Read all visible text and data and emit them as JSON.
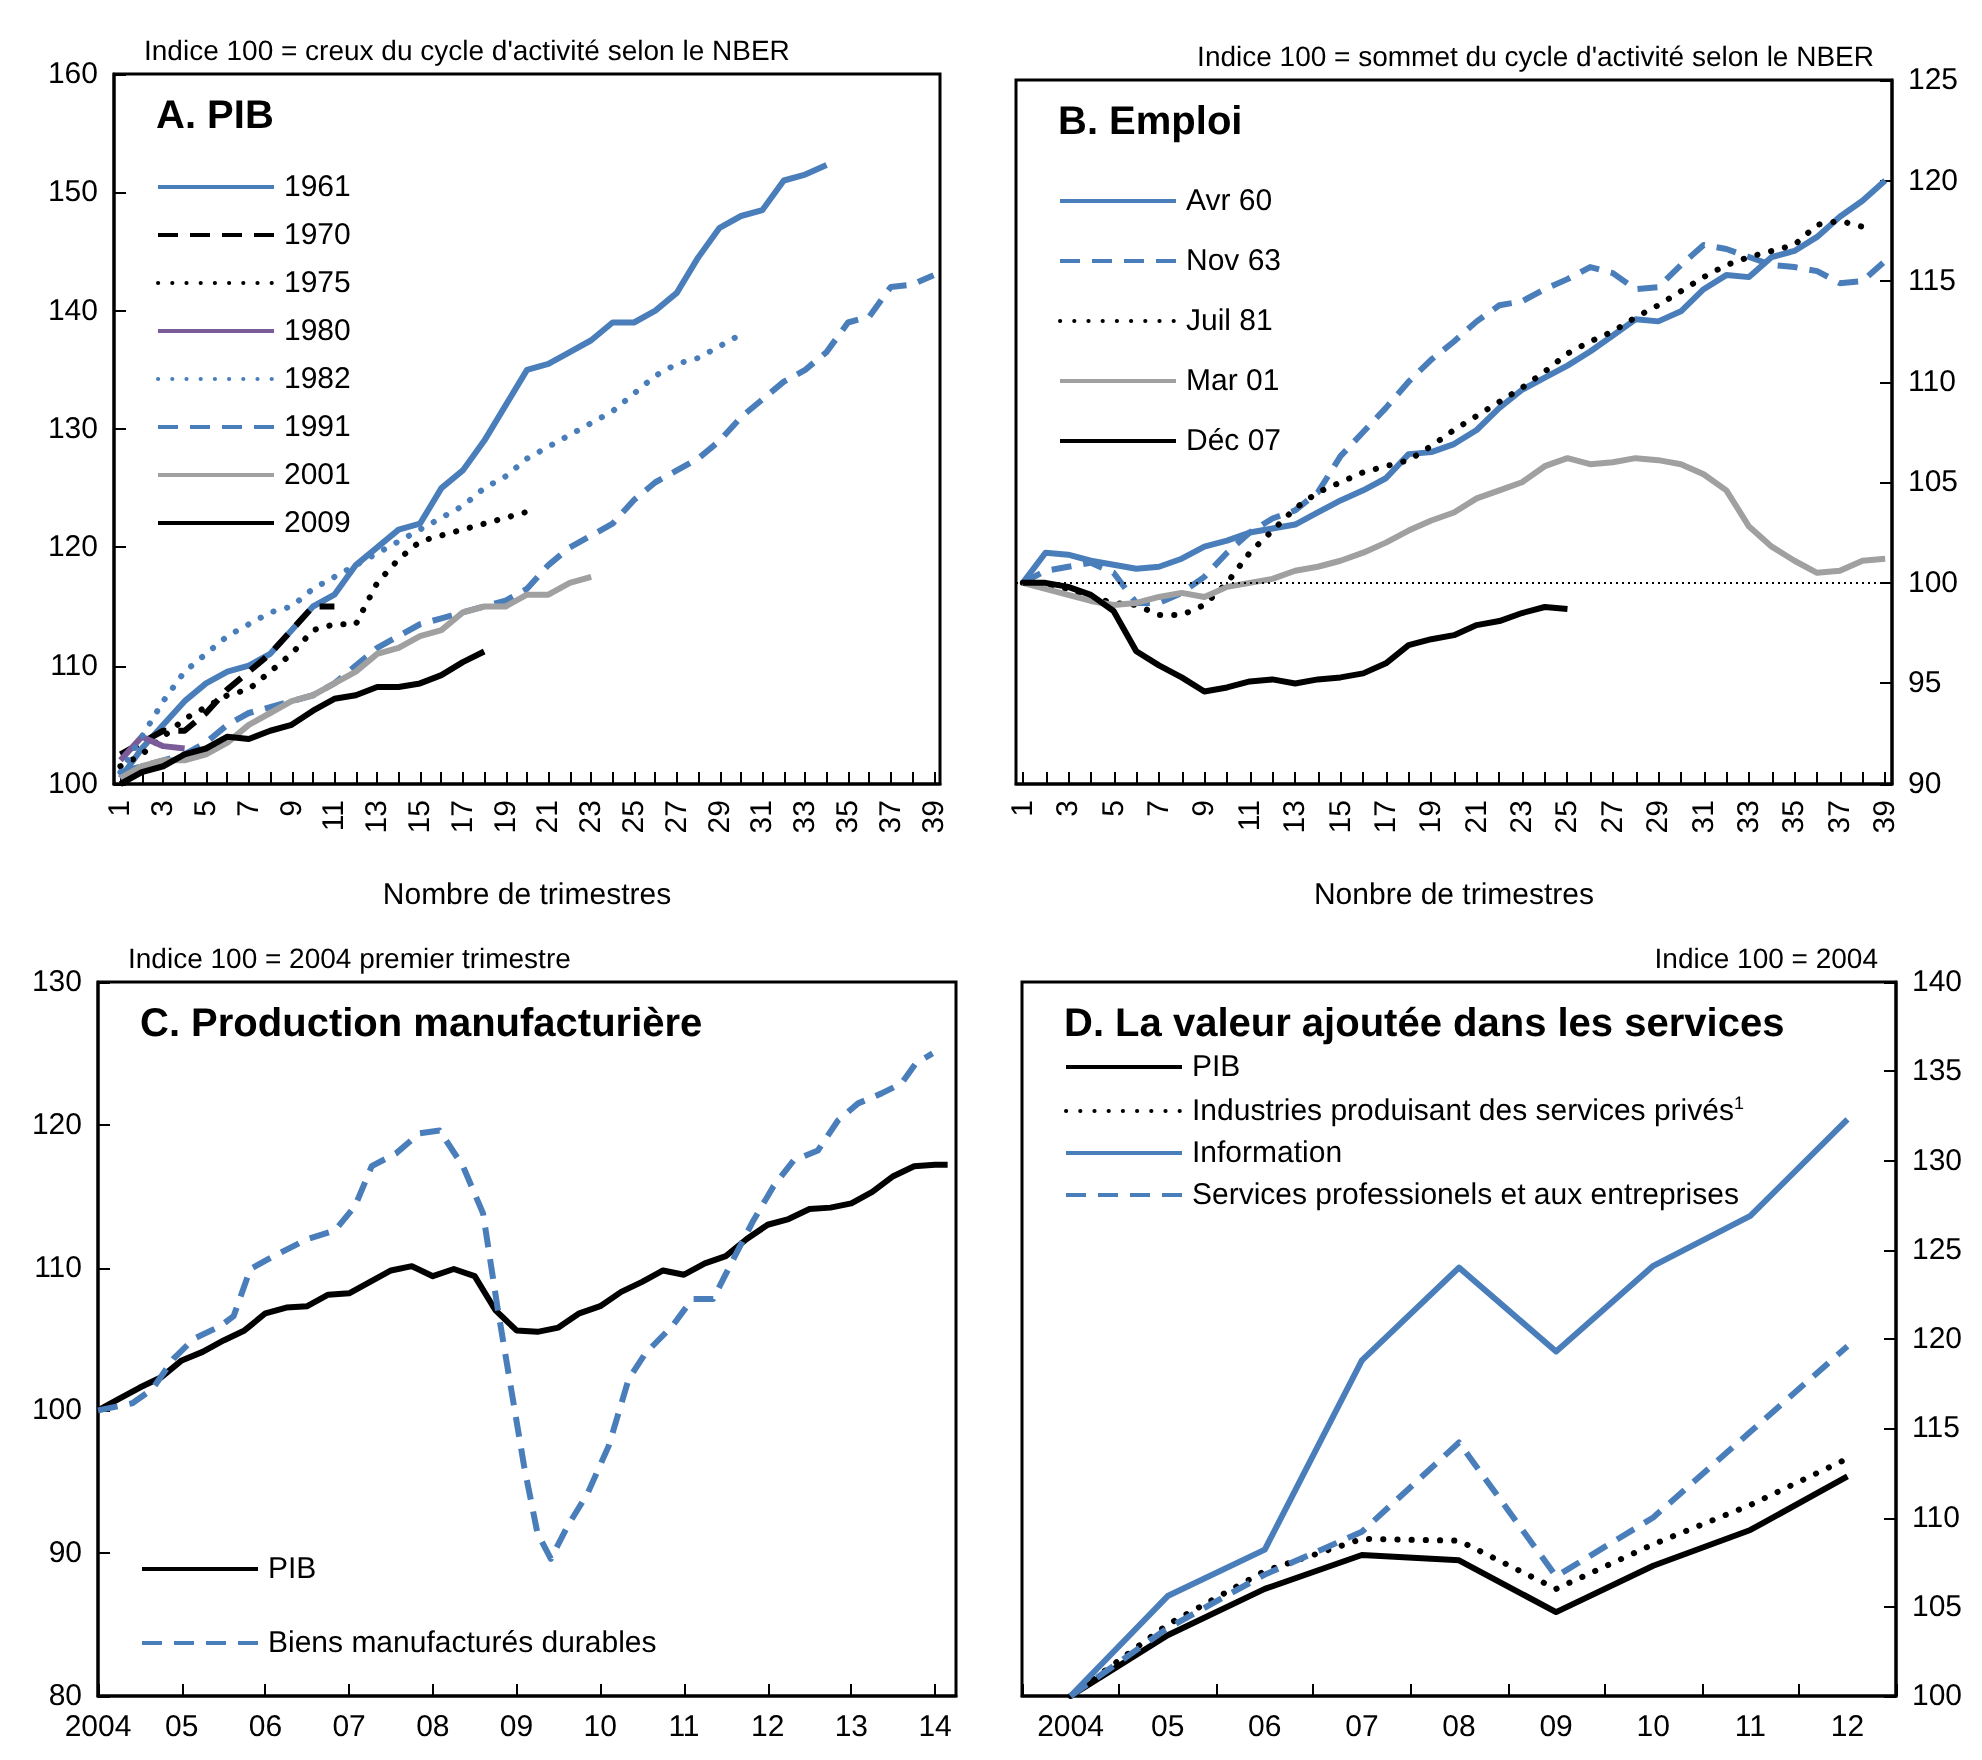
{
  "chart_data": [
    {
      "type": "line",
      "title": "A. PIB",
      "subtitle": "Indice 100 = creux du cycle d'activité selon le NBER",
      "xlabel": "Nombre de trimestres",
      "xlim": [
        0.7,
        39.3
      ],
      "xticks": [
        1,
        {
          "value": 2,
          "label": null
        },
        3,
        {
          "value": 4,
          "label": null
        },
        5,
        {
          "value": 6,
          "label": null
        },
        7,
        {
          "value": 8,
          "label": null
        },
        9,
        {
          "value": 10,
          "label": null
        },
        11,
        {
          "value": 12,
          "label": null
        },
        13,
        {
          "value": 14,
          "label": null
        },
        15,
        {
          "value": 16,
          "label": null
        },
        17,
        {
          "value": 18,
          "label": null
        },
        19,
        {
          "value": 20,
          "label": null
        },
        21,
        {
          "value": 22,
          "label": null
        },
        23,
        {
          "value": 24,
          "label": null
        },
        25,
        {
          "value": 26,
          "label": null
        },
        27,
        {
          "value": 28,
          "label": null
        },
        29,
        {
          "value": 30,
          "label": null
        },
        31,
        {
          "value": 32,
          "label": null
        },
        33,
        {
          "value": 34,
          "label": null
        },
        35,
        {
          "value": 36,
          "label": null
        },
        37,
        {
          "value": 38,
          "label": null
        },
        39
      ],
      "ylim": [
        100,
        160
      ],
      "yticks": [
        100,
        110,
        120,
        130,
        140,
        150,
        160
      ],
      "grid": false,
      "legend": "top left",
      "marker": "none",
      "series": [
        {
          "name": "1961",
          "color": "#4a7ebb",
          "line_style": "solid",
          "x": [
            1,
            2,
            3,
            4,
            5,
            6,
            7,
            8,
            9,
            10,
            11,
            12,
            13,
            14,
            15,
            16,
            17,
            18,
            19,
            20,
            21,
            22,
            23,
            24,
            25,
            26,
            27,
            28,
            29,
            30,
            31,
            32,
            33,
            34
          ],
          "values": [
            100.5,
            103,
            105,
            107,
            108.5,
            109.5,
            110,
            111,
            113,
            115,
            116,
            118.5,
            120,
            121.5,
            122,
            125,
            126.5,
            129,
            132,
            135,
            135.5,
            136.5,
            137.5,
            139,
            139,
            140,
            141.5,
            144.5,
            147,
            148,
            148.5,
            151,
            151.5,
            152.3
          ]
        },
        {
          "name": "1970",
          "color": "#000000",
          "line_style": "dashed",
          "x": [
            1,
            2,
            3,
            4,
            5,
            6,
            7,
            8,
            9,
            10,
            11
          ],
          "values": [
            102.5,
            103.5,
            104.5,
            104.5,
            106,
            108,
            109.5,
            111,
            113,
            115,
            115
          ]
        },
        {
          "name": "1975",
          "color": "#000000",
          "line_style": "dotted",
          "x": [
            1,
            2,
            3,
            4,
            5,
            6,
            7,
            8,
            9,
            10,
            11,
            12,
            13,
            14,
            15,
            16,
            17,
            18,
            19,
            20
          ],
          "values": [
            101.5,
            102.5,
            104,
            105.5,
            106.5,
            107.5,
            108,
            109.5,
            111,
            113,
            113.5,
            113.5,
            117,
            119,
            120.5,
            121,
            121.5,
            122,
            122.5,
            123
          ]
        },
        {
          "name": "1980",
          "color": "#7a5c99",
          "line_style": "solid",
          "x": [
            1,
            2,
            3,
            4
          ],
          "values": [
            102,
            104,
            103.2,
            103
          ]
        },
        {
          "name": "1982",
          "color": "#4a7ebb",
          "line_style": "dotted",
          "x": [
            1,
            2,
            3,
            4,
            5,
            6,
            7,
            8,
            9,
            10,
            11,
            12,
            13,
            14,
            15,
            16,
            17,
            18,
            19,
            20,
            21,
            22,
            23,
            24,
            25,
            26,
            27,
            28,
            29,
            30
          ],
          "values": [
            101,
            104,
            107,
            109.5,
            111,
            112.5,
            113.5,
            114.5,
            115,
            116.5,
            117.5,
            118.5,
            119.5,
            120.5,
            121.5,
            122.5,
            123.5,
            125,
            126,
            127.5,
            128.5,
            129.5,
            130.5,
            131.5,
            133,
            134.5,
            135.5,
            136,
            137,
            138
          ]
        },
        {
          "name": "1991",
          "color": "#4a7ebb",
          "line_style": "dashed",
          "x": [
            1,
            2,
            3,
            4,
            5,
            6,
            7,
            8,
            9,
            10,
            11,
            12,
            13,
            14,
            15,
            16,
            17,
            18,
            19,
            20,
            21,
            22,
            23,
            24,
            25,
            26,
            27,
            28,
            29,
            30,
            31,
            32,
            33,
            34,
            35,
            36,
            37,
            38,
            39
          ],
          "values": [
            101,
            101.5,
            102,
            102.5,
            103.5,
            105,
            106,
            106.5,
            107,
            107.5,
            108.5,
            110,
            111.5,
            112.5,
            113.5,
            114,
            114.5,
            115,
            115.5,
            116.5,
            118.5,
            120,
            121,
            122,
            124,
            125.5,
            126.5,
            127.5,
            129,
            131,
            132.5,
            134,
            135,
            136.5,
            139,
            139.5,
            142,
            142.2,
            143
          ]
        },
        {
          "name": "2001",
          "color": "#a0a0a0",
          "line_style": "solid",
          "x": [
            1,
            2,
            3,
            4,
            5,
            6,
            7,
            8,
            9,
            10,
            11,
            12,
            13,
            14,
            15,
            16,
            17,
            18,
            19,
            20,
            21,
            22,
            23
          ],
          "values": [
            100.5,
            101.5,
            102,
            102,
            102.5,
            103.5,
            105,
            106,
            107,
            107.5,
            108.5,
            109.5,
            111,
            111.5,
            112.5,
            113,
            114.5,
            115,
            115,
            116,
            116,
            117,
            117.5
          ]
        },
        {
          "name": "2009",
          "color": "#000000",
          "line_style": "solid",
          "x": [
            1,
            2,
            3,
            4,
            5,
            6,
            7,
            8,
            9,
            10,
            11,
            12,
            13,
            14,
            15,
            16,
            17,
            18
          ],
          "values": [
            100,
            101,
            101.5,
            102.5,
            103,
            104,
            103.8,
            104.5,
            105,
            106.2,
            107.2,
            107.5,
            108.2,
            108.2,
            108.5,
            109.2,
            110.3,
            111.2
          ]
        }
      ]
    },
    {
      "type": "line",
      "title": "B. Emploi",
      "subtitle": "Indice 100 = sommet du cycle d'activité selon le NBER",
      "xlabel": "Nonbre de trimestres",
      "xlim": [
        0.7,
        39.3
      ],
      "xticks": [
        1,
        {
          "value": 2,
          "label": null
        },
        3,
        {
          "value": 4,
          "label": null
        },
        5,
        {
          "value": 6,
          "label": null
        },
        7,
        {
          "value": 8,
          "label": null
        },
        9,
        {
          "value": 10,
          "label": null
        },
        11,
        {
          "value": 12,
          "label": null
        },
        13,
        {
          "value": 14,
          "label": null
        },
        15,
        {
          "value": 16,
          "label": null
        },
        17,
        {
          "value": 18,
          "label": null
        },
        19,
        {
          "value": 20,
          "label": null
        },
        21,
        {
          "value": 22,
          "label": null
        },
        23,
        {
          "value": 24,
          "label": null
        },
        25,
        {
          "value": 26,
          "label": null
        },
        27,
        {
          "value": 28,
          "label": null
        },
        29,
        {
          "value": 30,
          "label": null
        },
        31,
        {
          "value": 32,
          "label": null
        },
        33,
        {
          "value": 34,
          "label": null
        },
        35,
        {
          "value": 36,
          "label": null
        },
        37,
        {
          "value": 38,
          "label": null
        },
        39
      ],
      "y2lim": [
        90,
        125
      ],
      "y2ticks": [
        90,
        95,
        100,
        105,
        110,
        115,
        120,
        125
      ],
      "grid": false,
      "legend": "top left",
      "marker": "none",
      "ref_lines": [
        {
          "axis": "y2",
          "value": 100,
          "color": "#000000",
          "line_style": "dotted"
        }
      ],
      "series": [
        {
          "name": "Avr 60",
          "color": "#4a7ebb",
          "line_style": "solid",
          "axis": "y2",
          "x": [
            1,
            2,
            3,
            4,
            5,
            6,
            7,
            8,
            9,
            10,
            11,
            12,
            13,
            14,
            15,
            16,
            17,
            18,
            19,
            20,
            21,
            22,
            23,
            24,
            25,
            26,
            27,
            28,
            29,
            30,
            31,
            32,
            33,
            34,
            35,
            36,
            37,
            38,
            39
          ],
          "values": [
            100,
            101.5,
            101.4,
            101.1,
            100.9,
            100.7,
            100.8,
            101.2,
            101.8,
            102.1,
            102.5,
            102.7,
            102.9,
            103.5,
            104.1,
            104.6,
            105.2,
            106.4,
            106.5,
            106.9,
            107.6,
            108.7,
            109.6,
            110.2,
            110.8,
            111.5,
            112.3,
            113.1,
            113.0,
            113.5,
            114.6,
            115.3,
            115.2,
            116.2,
            116.5,
            117.2,
            118.2,
            119.0,
            120.0
          ]
        },
        {
          "name": "Nov 63",
          "color": "#4a7ebb",
          "line_style": "dashed",
          "axis": "y2",
          "x": [
            1,
            2,
            3,
            4,
            5,
            6,
            7,
            8,
            9,
            10,
            11,
            12,
            13,
            14,
            15,
            16,
            17,
            18,
            19,
            20,
            21,
            22,
            23,
            24,
            25,
            26,
            27,
            28,
            29,
            30,
            31,
            32,
            33,
            34,
            35,
            36,
            37,
            38,
            39
          ],
          "values": [
            100,
            100.6,
            100.8,
            101.0,
            100.5,
            99.0,
            99.0,
            99.5,
            100.3,
            101.5,
            102.5,
            103.2,
            103.6,
            104.5,
            106.3,
            107.5,
            108.7,
            110.0,
            111.1,
            112.0,
            113.0,
            113.8,
            114.0,
            114.6,
            115.1,
            115.7,
            115.4,
            114.6,
            114.7,
            115.8,
            116.8,
            116.6,
            116.2,
            115.8,
            115.7,
            115.5,
            114.9,
            115.0,
            116.0
          ]
        },
        {
          "name": "Juil 81",
          "color": "#000000",
          "line_style": "dotted",
          "axis": "y2",
          "x": [
            1,
            2,
            3,
            4,
            5,
            6,
            7,
            8,
            9,
            10,
            11,
            12,
            13,
            14,
            15,
            16,
            17,
            18,
            19,
            20,
            21,
            22,
            23,
            24,
            25,
            26,
            27,
            28,
            29,
            30,
            31,
            32,
            33,
            34,
            35,
            36,
            37,
            38
          ],
          "values": [
            100,
            99.9,
            99.7,
            99.3,
            99.0,
            98.9,
            98.4,
            98.4,
            98.9,
            100.0,
            101.5,
            102.6,
            103.7,
            104.5,
            105.0,
            105.5,
            105.8,
            106.1,
            106.8,
            107.6,
            108.3,
            109.0,
            109.7,
            110.5,
            111.4,
            112.0,
            112.5,
            113.2,
            113.8,
            114.5,
            115.2,
            115.8,
            116.2,
            116.5,
            116.8,
            117.8,
            118.0,
            117.7
          ]
        },
        {
          "name": "Mar 01",
          "color": "#a0a0a0",
          "line_style": "solid",
          "axis": "y2",
          "x": [
            1,
            2,
            3,
            4,
            5,
            6,
            7,
            8,
            9,
            10,
            11,
            12,
            13,
            14,
            15,
            16,
            17,
            18,
            19,
            20,
            21,
            22,
            23,
            24,
            25,
            26,
            27,
            28,
            29,
            30,
            31,
            32,
            33,
            34,
            35,
            36,
            37,
            38,
            39
          ],
          "values": [
            100,
            99.7,
            99.4,
            99.1,
            98.9,
            99.0,
            99.3,
            99.5,
            99.3,
            99.8,
            100.0,
            100.2,
            100.6,
            100.8,
            101.1,
            101.5,
            102.0,
            102.6,
            103.1,
            103.5,
            104.2,
            104.6,
            105.0,
            105.8,
            106.2,
            105.9,
            106.0,
            106.2,
            106.1,
            105.9,
            105.4,
            104.6,
            102.8,
            101.8,
            101.1,
            100.5,
            100.6,
            101.1,
            101.2
          ]
        },
        {
          "name": "Déc 07",
          "color": "#000000",
          "line_style": "solid",
          "axis": "y2",
          "x": [
            1,
            2,
            3,
            4,
            5,
            6,
            7,
            8,
            9,
            10,
            11,
            12,
            13,
            14,
            15,
            16,
            17,
            18,
            19,
            20,
            21,
            22,
            23,
            24,
            25
          ],
          "values": [
            100,
            100,
            99.8,
            99.4,
            98.6,
            96.6,
            95.9,
            95.3,
            94.6,
            94.8,
            95.1,
            95.2,
            95.0,
            95.2,
            95.3,
            95.5,
            96.0,
            96.9,
            97.2,
            97.4,
            97.9,
            98.1,
            98.5,
            98.8,
            98.7
          ]
        }
      ]
    },
    {
      "type": "line",
      "title": "C. Production manufacturière",
      "subtitle": "Indice 100 = 2004 premier trimestre",
      "xlim": [
        2004,
        2014.25
      ],
      "xticks": [
        2004,
        {
          "value": 2005,
          "label": "05"
        },
        {
          "value": 2006,
          "label": "06"
        },
        {
          "value": 2007,
          "label": "07"
        },
        {
          "value": 2008,
          "label": "08"
        },
        {
          "value": 2009,
          "label": "09"
        },
        {
          "value": 2010,
          "label": "10"
        },
        {
          "value": 2011,
          "label": "11"
        },
        {
          "value": 2012,
          "label": "12"
        },
        {
          "value": 2013,
          "label": "13"
        },
        {
          "value": 2014,
          "label": "14"
        }
      ],
      "ylim": [
        80,
        130
      ],
      "yticks": [
        80,
        90,
        100,
        110,
        120,
        130
      ],
      "grid": false,
      "legend": "bottom left",
      "marker": "none",
      "series": [
        {
          "name": "PIB",
          "color": "#000000",
          "line_style": "solid",
          "x": [
            2004,
            2004.25,
            2004.5,
            2004.75,
            2005,
            2005.25,
            2005.5,
            2005.75,
            2006,
            2006.25,
            2006.5,
            2006.75,
            2007,
            2007.25,
            2007.5,
            2007.75,
            2008,
            2008.25,
            2008.5,
            2008.75,
            2009,
            2009.25,
            2009.5,
            2009.75,
            2010,
            2010.25,
            2010.5,
            2010.75,
            2011,
            2011.25,
            2011.5,
            2011.75,
            2012,
            2012.25,
            2012.5,
            2012.75,
            2013,
            2013.25,
            2013.5,
            2013.75,
            2014,
            2014.15
          ],
          "values": [
            100,
            100.8,
            101.6,
            102.3,
            103.5,
            104.1,
            104.9,
            105.6,
            106.8,
            107.2,
            107.3,
            108.1,
            108.2,
            109.0,
            109.8,
            110.1,
            109.4,
            109.9,
            109.4,
            107.0,
            105.6,
            105.5,
            105.8,
            106.8,
            107.3,
            108.3,
            109.0,
            109.8,
            109.5,
            110.3,
            110.8,
            112.0,
            113.0,
            113.4,
            114.1,
            114.2,
            114.5,
            115.3,
            116.4,
            117.1,
            117.2,
            117.2
          ]
        },
        {
          "name": "Biens manufacturés durables",
          "color": "#4a7ebb",
          "line_style": "dashed",
          "x": [
            2004,
            2004.41,
            2004.65,
            2004.9,
            2005.14,
            2005.46,
            2005.62,
            2005.82,
            2006.1,
            2006.5,
            2006.83,
            2007.07,
            2007.27,
            2007.56,
            2007.84,
            2008.08,
            2008.36,
            2008.6,
            2008.77,
            2008.93,
            2009.09,
            2009.25,
            2009.41,
            2009.61,
            2009.85,
            2010.1,
            2010.34,
            2010.54,
            2010.86,
            2011.1,
            2011.35,
            2011.59,
            2011.83,
            2012.07,
            2012.31,
            2012.6,
            2012.84,
            2013.08,
            2013.36,
            2013.6,
            2013.77,
            2013.97
          ],
          "values": [
            100,
            100.5,
            101.5,
            103.6,
            105,
            105.9,
            106.6,
            109.9,
            110.8,
            112,
            112.6,
            114.3,
            117.1,
            118,
            119.4,
            119.6,
            117.1,
            113.8,
            107.3,
            101.7,
            96.1,
            91.4,
            89.6,
            91.9,
            94.2,
            97.5,
            102.2,
            104,
            105.9,
            107.8,
            107.8,
            110.6,
            113.3,
            115.7,
            117.5,
            118.2,
            120.3,
            121.5,
            122.2,
            122.9,
            124.3,
            125
          ]
        }
      ]
    },
    {
      "type": "line",
      "title": "D. La valeur ajoutée dans les services",
      "subtitle": "Indice 100 = 2004",
      "categories": [
        "2004",
        "05",
        "06",
        "07",
        "08",
        "09",
        "10",
        "11",
        "12"
      ],
      "y2lim": [
        100,
        140
      ],
      "y2ticks": [
        100,
        105,
        110,
        115,
        120,
        125,
        130,
        135,
        140
      ],
      "grid": false,
      "legend": "top left",
      "marker": "none",
      "series": [
        {
          "name": "PIB",
          "color": "#000000",
          "line_style": "solid",
          "axis": "y2",
          "values": [
            100,
            103.4,
            106.0,
            107.9,
            107.6,
            104.7,
            107.3,
            109.3,
            112.3
          ]
        },
        {
          "name": "Industries produisant des services privés$^{1}$",
          "color": "#000000",
          "line_style": "dotted",
          "axis": "y2",
          "values": [
            100,
            104.0,
            107.0,
            108.8,
            108.7,
            106.0,
            108.5,
            110.7,
            113.3
          ]
        },
        {
          "name": "Information",
          "color": "#4a7ebb",
          "line_style": "solid",
          "axis": "y2",
          "values": [
            100,
            105.6,
            108.2,
            118.8,
            124.0,
            119.3,
            124.1,
            126.9,
            132.3
          ]
        },
        {
          "name": "Services professionels et aux entreprises",
          "color": "#4a7ebb",
          "line_style": "dashed",
          "axis": "y2",
          "values": [
            100,
            103.8,
            106.8,
            109.2,
            114.2,
            106.7,
            110.0,
            114.8,
            119.6
          ]
        }
      ]
    }
  ]
}
